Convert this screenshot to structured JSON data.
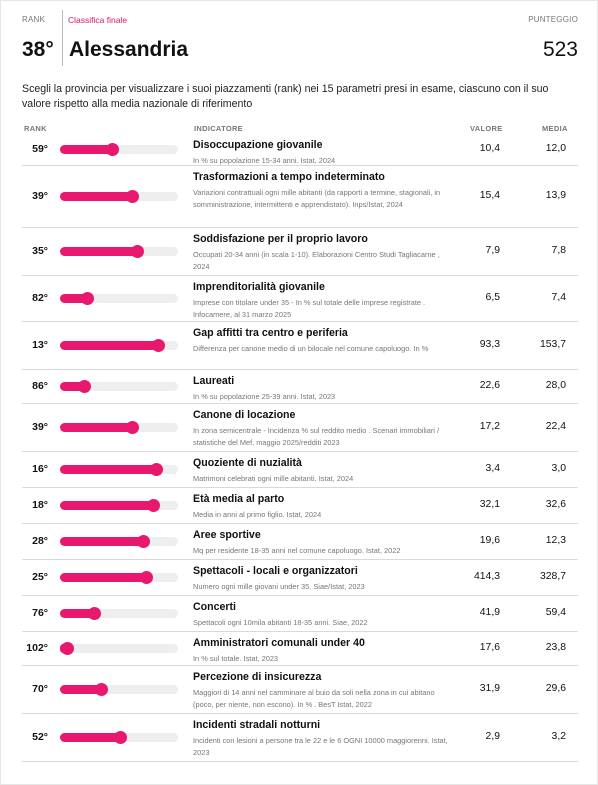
{
  "header": {
    "rank_label": "RANK",
    "classifica_label": "Classifica finale",
    "score_label": "PUNTEGGIO",
    "rank": "38°",
    "city": "Alessandria",
    "score": "523"
  },
  "intro": "Scegli la provincia per visualizzare i suoi piazzamenti (rank) nei 15 parametri presi in esame, ciascuno con il suo valore rispetto alla media nazionale di riferimento",
  "columns": {
    "rank": "RANK",
    "indicator": "INDICATORE",
    "value": "VALORE",
    "average": "MEDIA"
  },
  "colors": {
    "accent": "#e8186f",
    "bar_track": "#eeeeee"
  },
  "rows": [
    {
      "rank": "59°",
      "bar_fraction": 0.44,
      "name": "Disoccupazione giovanile",
      "source": "In % su popolazione 15-34 anni. Istat, 2024",
      "value": "10,4",
      "average": "12,0"
    },
    {
      "rank": "39°",
      "bar_fraction": 0.61,
      "name": "Trasformazioni a tempo indeterminato",
      "source": "Variazioni contrattuali ogni mille abitanti (da rapporti a termine, stagionali, in somministrazione, intermittenti e apprendistato). Inps/Istat, 2024",
      "value": "15,4",
      "average": "13,9"
    },
    {
      "rank": "35°",
      "bar_fraction": 0.65,
      "name": "Soddisfazione per il proprio lavoro",
      "source": "Occupati 20-34 anni (in scala 1-10). Elaborazioni Centro Studi Tagliacarne , 2024",
      "value": "7,9",
      "average": "7,8"
    },
    {
      "rank": "82°",
      "bar_fraction": 0.23,
      "name": "Imprenditorialità giovanile",
      "source": "Imprese con titolare under 35 - In % sul totale delle imprese registrate . Infocamere, al 31 marzo 2025",
      "value": "6,5",
      "average": "7,4"
    },
    {
      "rank": "13°",
      "bar_fraction": 0.83,
      "name": "Gap affitti tra centro e periferia",
      "source": "Differenza per canone medio di un bilocale nel comune capoluogo. In %",
      "value": "93,3",
      "average": "153,7"
    },
    {
      "rank": "86°",
      "bar_fraction": 0.2,
      "name": "Laureati",
      "source": "In % su popolazione 25-39 anni. Istat, 2023",
      "value": "22,6",
      "average": "28,0"
    },
    {
      "rank": "39°",
      "bar_fraction": 0.61,
      "name": "Canone di locazione",
      "source": "In zona semicentrale - Incidenza % sul reddito medio . Scenari immobiliari / statistiche del Mef, maggio 2025/redditi 2023",
      "value": "17,2",
      "average": "22,4"
    },
    {
      "rank": "16°",
      "bar_fraction": 0.81,
      "name": "Quoziente di nuzialità",
      "source": "Matrimoni celebrati ogni mille abitanti. Istat, 2024",
      "value": "3,4",
      "average": "3,0"
    },
    {
      "rank": "18°",
      "bar_fraction": 0.79,
      "name": "Età media al parto",
      "source": "Media in anni al primo figlio. Istat, 2024",
      "value": "32,1",
      "average": "32,6"
    },
    {
      "rank": "28°",
      "bar_fraction": 0.7,
      "name": "Aree sportive",
      "source": "Mq per residente 18-35 anni nel comune capoluogo. Istat, 2022",
      "value": "19,6",
      "average": "12,3"
    },
    {
      "rank": "25°",
      "bar_fraction": 0.73,
      "name": "Spettacoli - locali e organizzatori",
      "source": "Numero ogni mille giovani under 35. Siae/Istat, 2023",
      "value": "414,3",
      "average": "328,7"
    },
    {
      "rank": "76°",
      "bar_fraction": 0.29,
      "name": "Concerti",
      "source": "Spettacoli ogni 10mila abitanti 18-35 anni. Siae, 2022",
      "value": "41,9",
      "average": "59,4"
    },
    {
      "rank": "102°",
      "bar_fraction": 0.06,
      "name": "Amministratori comunali under 40",
      "source": "In % sul totale. Istat, 2023",
      "value": "17,6",
      "average": "23,8"
    },
    {
      "rank": "70°",
      "bar_fraction": 0.35,
      "name": "Percezione di insicurezza",
      "source": "Maggiori di 14 anni nel camminare al buio da soli nella zona in cui abitano (poco, per niente, non escono). In % . BesT Istat, 2022",
      "value": "31,9",
      "average": "29,6"
    },
    {
      "rank": "52°",
      "bar_fraction": 0.51,
      "name": "Incidenti stradali notturni",
      "source": "Incidenti con lesioni a persone tra le 22 e le 6 OGNI 10000 maggiorenni. Istat, 2023",
      "value": "2,9",
      "average": "3,2"
    }
  ]
}
